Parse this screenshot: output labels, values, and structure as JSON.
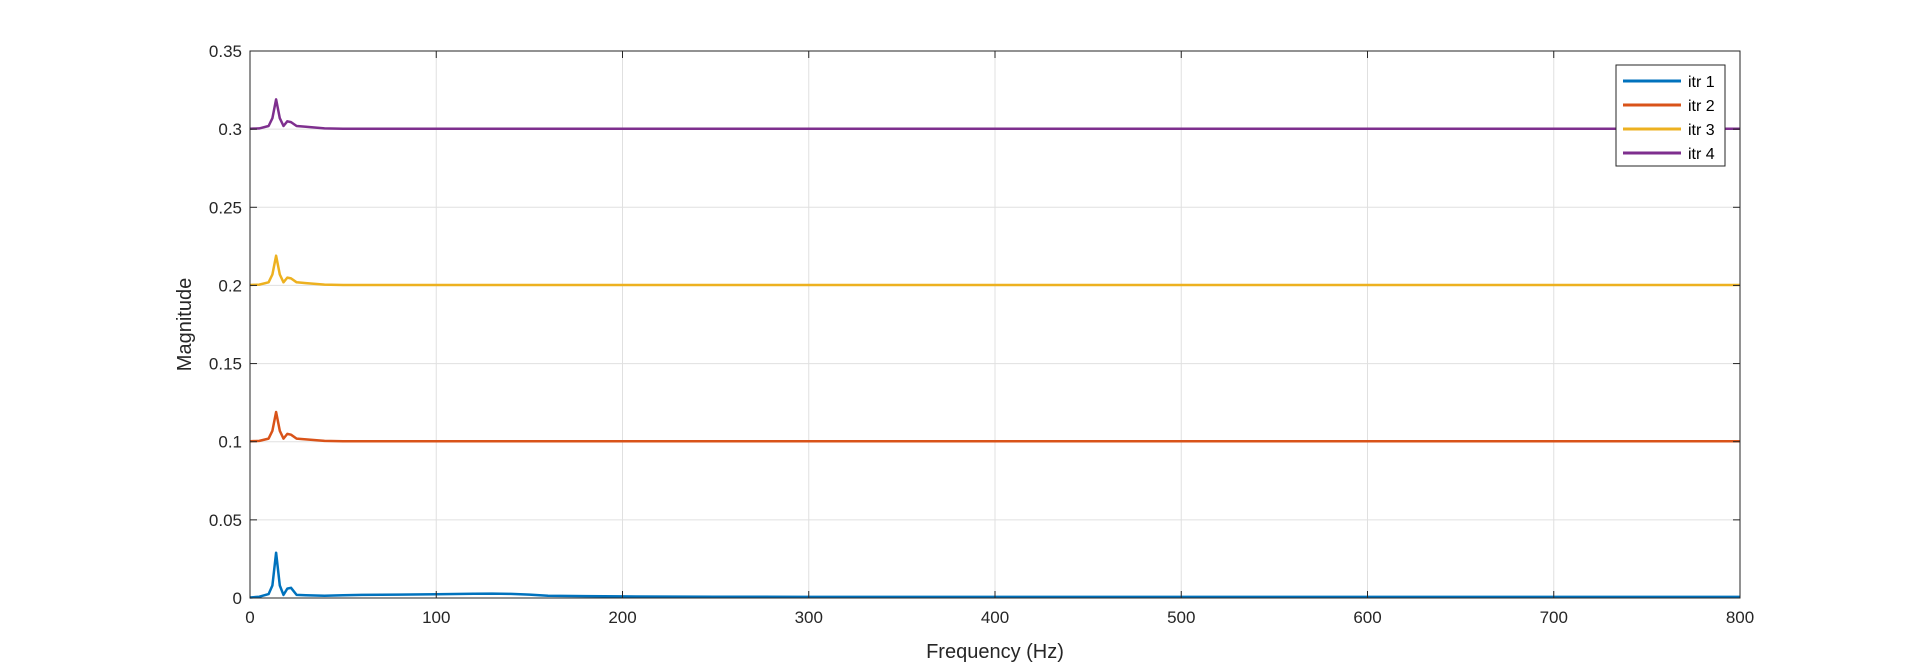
{
  "chart_data": {
    "type": "line",
    "title": "",
    "xlabel": "Frequency (Hz)",
    "ylabel": "Magnitude",
    "xlim": [
      0,
      800
    ],
    "ylim": [
      0,
      0.35
    ],
    "xticks": [
      0,
      100,
      200,
      300,
      400,
      500,
      600,
      700,
      800
    ],
    "yticks": [
      0,
      0.05,
      0.1,
      0.15,
      0.2,
      0.25,
      0.3,
      0.35
    ],
    "xtick_labels": [
      "0",
      "100",
      "200",
      "300",
      "400",
      "500",
      "600",
      "700",
      "800"
    ],
    "ytick_labels": [
      "0",
      "0.05",
      "0.1",
      "0.15",
      "0.2",
      "0.25",
      "0.3",
      "0.35"
    ],
    "grid": true,
    "legend_position": "top-right",
    "series": [
      {
        "name": "itr 1",
        "color": "#0072BD",
        "points": [
          [
            0,
            0.0003
          ],
          [
            5,
            0.0008
          ],
          [
            10,
            0.0025
          ],
          [
            12,
            0.008
          ],
          [
            14,
            0.029
          ],
          [
            16,
            0.008
          ],
          [
            18,
            0.002
          ],
          [
            20,
            0.006
          ],
          [
            22,
            0.0065
          ],
          [
            25,
            0.002
          ],
          [
            30,
            0.0018
          ],
          [
            40,
            0.0015
          ],
          [
            50,
            0.0018
          ],
          [
            60,
            0.002
          ],
          [
            80,
            0.0022
          ],
          [
            100,
            0.0024
          ],
          [
            120,
            0.0027
          ],
          [
            130,
            0.0028
          ],
          [
            140,
            0.0026
          ],
          [
            150,
            0.0022
          ],
          [
            160,
            0.0015
          ],
          [
            180,
            0.0012
          ],
          [
            200,
            0.001
          ],
          [
            250,
            0.0008
          ],
          [
            300,
            0.0007
          ],
          [
            400,
            0.0007
          ],
          [
            500,
            0.0007
          ],
          [
            600,
            0.0007
          ],
          [
            700,
            0.0007
          ],
          [
            800,
            0.0007
          ]
        ]
      },
      {
        "name": "itr 2",
        "color": "#D95319",
        "points": [
          [
            0,
            0.1003
          ],
          [
            5,
            0.1005
          ],
          [
            10,
            0.102
          ],
          [
            12,
            0.107
          ],
          [
            14,
            0.119
          ],
          [
            16,
            0.107
          ],
          [
            18,
            0.102
          ],
          [
            20,
            0.105
          ],
          [
            22,
            0.1045
          ],
          [
            25,
            0.102
          ],
          [
            30,
            0.1015
          ],
          [
            40,
            0.1005
          ],
          [
            50,
            0.1003
          ],
          [
            100,
            0.1003
          ],
          [
            200,
            0.1003
          ],
          [
            300,
            0.1003
          ],
          [
            400,
            0.1003
          ],
          [
            500,
            0.1003
          ],
          [
            600,
            0.1003
          ],
          [
            700,
            0.1003
          ],
          [
            800,
            0.1003
          ]
        ]
      },
      {
        "name": "itr 3",
        "color": "#EDB120",
        "points": [
          [
            0,
            0.2003
          ],
          [
            5,
            0.2005
          ],
          [
            10,
            0.202
          ],
          [
            12,
            0.207
          ],
          [
            14,
            0.219
          ],
          [
            16,
            0.207
          ],
          [
            18,
            0.202
          ],
          [
            20,
            0.205
          ],
          [
            22,
            0.2045
          ],
          [
            25,
            0.202
          ],
          [
            30,
            0.2015
          ],
          [
            40,
            0.2005
          ],
          [
            50,
            0.2003
          ],
          [
            100,
            0.2003
          ],
          [
            200,
            0.2003
          ],
          [
            300,
            0.2003
          ],
          [
            400,
            0.2003
          ],
          [
            500,
            0.2003
          ],
          [
            600,
            0.2003
          ],
          [
            700,
            0.2003
          ],
          [
            800,
            0.2003
          ]
        ]
      },
      {
        "name": "itr 4",
        "color": "#7E2F8E",
        "points": [
          [
            0,
            0.3003
          ],
          [
            5,
            0.3005
          ],
          [
            10,
            0.302
          ],
          [
            12,
            0.307
          ],
          [
            14,
            0.319
          ],
          [
            16,
            0.307
          ],
          [
            18,
            0.302
          ],
          [
            20,
            0.305
          ],
          [
            22,
            0.3045
          ],
          [
            25,
            0.302
          ],
          [
            30,
            0.3015
          ],
          [
            40,
            0.3005
          ],
          [
            50,
            0.3003
          ],
          [
            100,
            0.3003
          ],
          [
            200,
            0.3003
          ],
          [
            300,
            0.3003
          ],
          [
            400,
            0.3003
          ],
          [
            500,
            0.3003
          ],
          [
            600,
            0.3003
          ],
          [
            700,
            0.3003
          ],
          [
            800,
            0.3003
          ]
        ]
      }
    ]
  }
}
